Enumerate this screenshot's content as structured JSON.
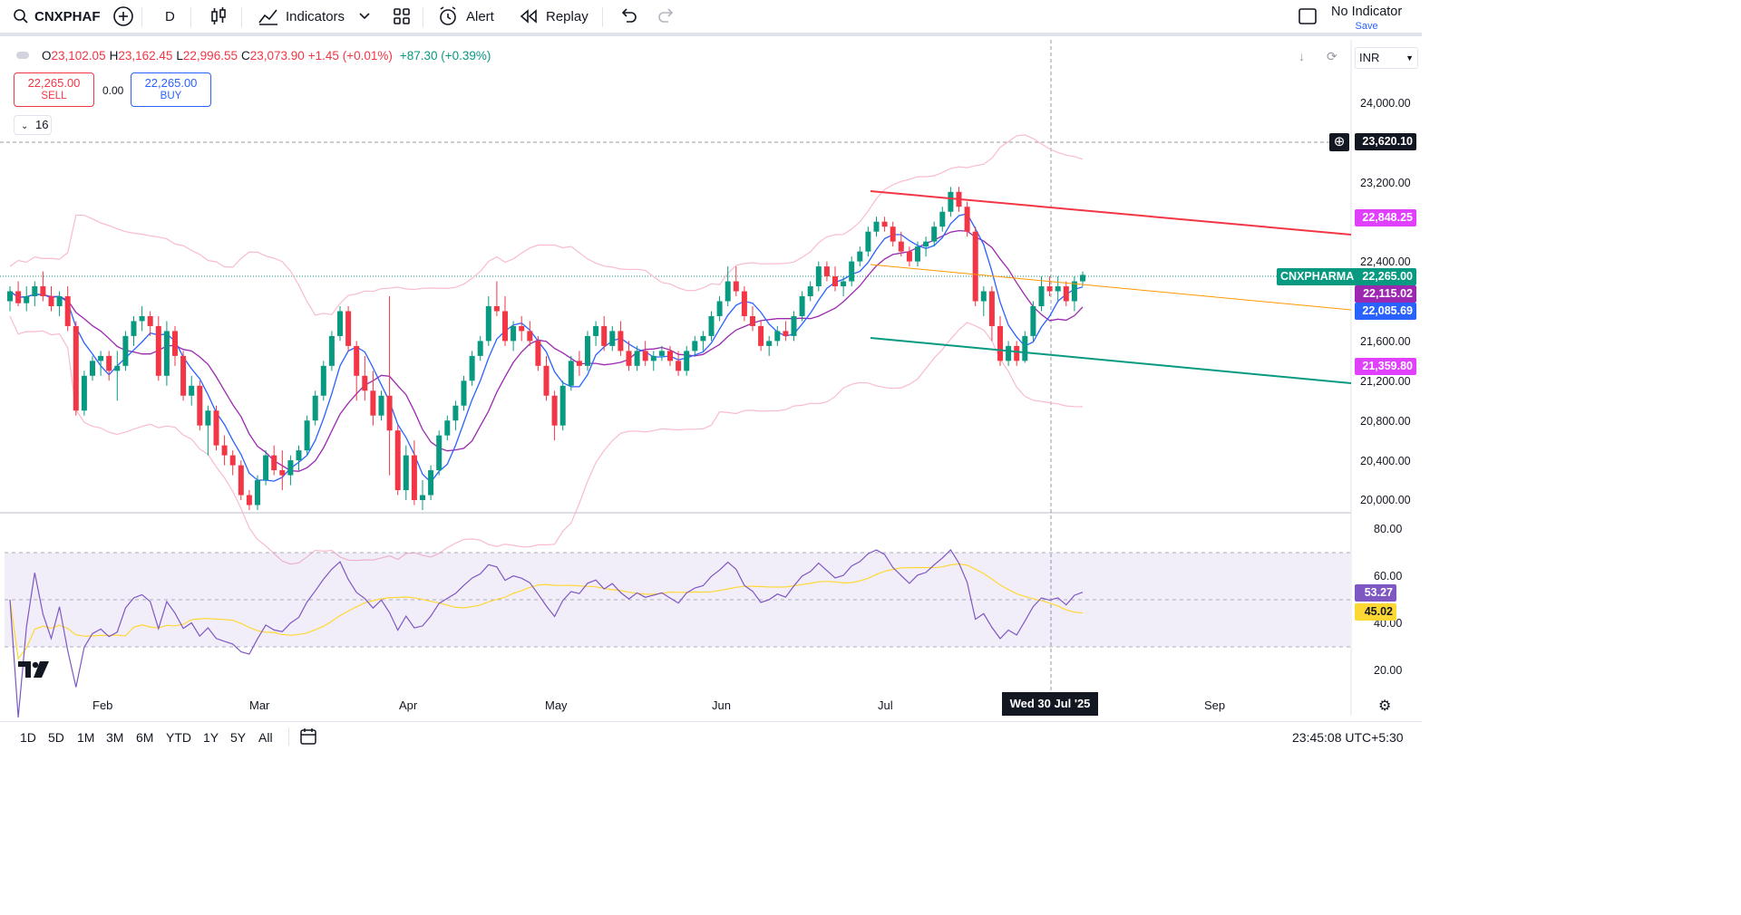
{
  "toolbar": {
    "symbol": "CNXPHAF",
    "interval": "D",
    "indicators_label": "Indicators",
    "alert_label": "Alert",
    "replay_label": "Replay",
    "no_indicator_label": "No Indicator",
    "save_label": "Save"
  },
  "legend": {
    "open_label": "O",
    "open": "23,102.05",
    "high_label": "H",
    "high": "23,162.45",
    "low_label": "L",
    "low": "22,996.55",
    "close_label": "C",
    "close": "23,073.90",
    "change": "+1.45 (+0.01%)",
    "ext_change": "+87.30 (+0.39%)"
  },
  "trade": {
    "sell_price": "22,265.00",
    "sell_label": "SELL",
    "spread": "0.00",
    "buy_price": "22,265.00",
    "buy_label": "BUY"
  },
  "drawings_count": "16",
  "currency": "INR",
  "price_axis": [
    "24,000.00",
    "23,200.00",
    "22,400.00",
    "21,600.00",
    "21,200.00",
    "20,800.00",
    "20,400.00",
    "20,000.00"
  ],
  "price_labels": {
    "crosshair": "23,620.10",
    "red_line": "22,848.25",
    "symbol_tag": "CNXPHARMA",
    "last": "22,265.00",
    "ma_slow": "22,115.02",
    "ma_fast": "22,085.69",
    "green_line": "21,359.80"
  },
  "rsi_axis": [
    "80.00",
    "60.00",
    "40.00",
    "20.00"
  ],
  "rsi_labels": {
    "rsi": "53.27",
    "rsi_ma": "45.02"
  },
  "time_axis": [
    "Feb",
    "Mar",
    "Apr",
    "May",
    "Jun",
    "Jul",
    "Sep"
  ],
  "crosshair_date": "Wed 30 Jul '25",
  "timeframes": [
    "1D",
    "5D",
    "1M",
    "3M",
    "6M",
    "YTD",
    "1Y",
    "5Y",
    "All"
  ],
  "clock": "23:45:08 UTC+5:30",
  "colors": {
    "up": "#089981",
    "down": "#f23645",
    "ma_fast": "#2962ff",
    "ma_slow": "#9c27b0",
    "bb": "#f8bbd0",
    "rsi": "#7e57c2",
    "rsi_ma": "#fdd835"
  },
  "chart_data": {
    "type": "candlestick",
    "ylim": [
      19950,
      24150
    ],
    "candles_ohlc": [
      [
        22000,
        22150,
        21900,
        22100
      ],
      [
        22100,
        22200,
        21950,
        21980
      ],
      [
        21980,
        22150,
        21900,
        22050
      ],
      [
        22050,
        22200,
        21950,
        22150
      ],
      [
        22150,
        22300,
        22000,
        22050
      ],
      [
        22050,
        22150,
        21900,
        21950
      ],
      [
        21950,
        22100,
        21850,
        22050
      ],
      [
        22050,
        22150,
        21700,
        21750
      ],
      [
        21750,
        21800,
        20850,
        20900
      ],
      [
        20900,
        21300,
        20850,
        21250
      ],
      [
        21250,
        21450,
        21200,
        21400
      ],
      [
        21400,
        21500,
        21250,
        21450
      ],
      [
        21450,
        21500,
        21200,
        21300
      ],
      [
        21300,
        21500,
        21000,
        21350
      ],
      [
        21350,
        21700,
        21300,
        21650
      ],
      [
        21650,
        21850,
        21550,
        21800
      ],
      [
        21800,
        21950,
        21700,
        21850
      ],
      [
        21850,
        21900,
        21650,
        21750
      ],
      [
        21750,
        21850,
        21200,
        21250
      ],
      [
        21250,
        21800,
        21150,
        21700
      ],
      [
        21700,
        21750,
        21350,
        21450
      ],
      [
        21450,
        21500,
        21000,
        21050
      ],
      [
        21050,
        21250,
        20950,
        21150
      ],
      [
        21150,
        21200,
        20700,
        20750
      ],
      [
        20750,
        20950,
        20450,
        20900
      ],
      [
        20900,
        20950,
        20500,
        20550
      ],
      [
        20550,
        20650,
        20350,
        20450
      ],
      [
        20450,
        20500,
        20250,
        20350
      ],
      [
        20350,
        20400,
        20000,
        20050
      ],
      [
        20050,
        20100,
        19900,
        19950
      ],
      [
        19950,
        20250,
        19900,
        20200
      ],
      [
        20200,
        20500,
        20150,
        20450
      ],
      [
        20450,
        20550,
        20250,
        20300
      ],
      [
        20300,
        20500,
        20100,
        20250
      ],
      [
        20250,
        20450,
        20150,
        20400
      ],
      [
        20400,
        20550,
        20300,
        20500
      ],
      [
        20500,
        20850,
        20450,
        20800
      ],
      [
        20800,
        21100,
        20750,
        21050
      ],
      [
        21050,
        21400,
        21000,
        21350
      ],
      [
        21350,
        21700,
        21300,
        21650
      ],
      [
        21650,
        21950,
        21600,
        21900
      ],
      [
        21900,
        21950,
        21500,
        21550
      ],
      [
        21550,
        21600,
        21000,
        21250
      ],
      [
        21250,
        21450,
        21000,
        21100
      ],
      [
        21100,
        21300,
        20750,
        20850
      ],
      [
        20850,
        21100,
        20800,
        21050
      ],
      [
        21050,
        22050,
        20250,
        20700
      ],
      [
        20700,
        20750,
        20050,
        20100
      ],
      [
        20100,
        20550,
        20000,
        20450
      ],
      [
        20450,
        20600,
        19950,
        20000
      ],
      [
        20000,
        20200,
        19900,
        20050
      ],
      [
        20050,
        20350,
        20000,
        20300
      ],
      [
        20300,
        20700,
        20250,
        20650
      ],
      [
        20650,
        20850,
        20600,
        20800
      ],
      [
        20800,
        21000,
        20700,
        20950
      ],
      [
        20950,
        21250,
        20900,
        21200
      ],
      [
        21200,
        21500,
        21150,
        21450
      ],
      [
        21450,
        21650,
        21400,
        21600
      ],
      [
        21600,
        22050,
        21550,
        21950
      ],
      [
        21950,
        22200,
        21850,
        21900
      ],
      [
        21900,
        22050,
        21550,
        21600
      ],
      [
        21600,
        21800,
        21500,
        21750
      ],
      [
        21750,
        21850,
        21600,
        21700
      ],
      [
        21700,
        21800,
        21550,
        21600
      ],
      [
        21600,
        21650,
        21300,
        21350
      ],
      [
        21350,
        21450,
        21000,
        21050
      ],
      [
        21050,
        21100,
        20600,
        20750
      ],
      [
        20750,
        21200,
        20700,
        21150
      ],
      [
        21150,
        21450,
        21100,
        21400
      ],
      [
        21400,
        21500,
        21250,
        21350
      ],
      [
        21350,
        21700,
        21300,
        21650
      ],
      [
        21650,
        21800,
        21550,
        21750
      ],
      [
        21750,
        21850,
        21500,
        21550
      ],
      [
        21550,
        21750,
        21500,
        21700
      ],
      [
        21700,
        21800,
        21450,
        21500
      ],
      [
        21500,
        21600,
        21300,
        21350
      ],
      [
        21350,
        21550,
        21300,
        21500
      ],
      [
        21500,
        21600,
        21350,
        21400
      ],
      [
        21400,
        21500,
        21300,
        21450
      ],
      [
        21450,
        21550,
        21400,
        21500
      ],
      [
        21500,
        21550,
        21350,
        21400
      ],
      [
        21400,
        21500,
        21250,
        21300
      ],
      [
        21300,
        21550,
        21250,
        21500
      ],
      [
        21500,
        21650,
        21450,
        21600
      ],
      [
        21600,
        21700,
        21500,
        21650
      ],
      [
        21650,
        21900,
        21600,
        21850
      ],
      [
        21850,
        22050,
        21800,
        22000
      ],
      [
        22000,
        22350,
        21950,
        22200
      ],
      [
        22200,
        22350,
        22050,
        22100
      ],
      [
        22100,
        22150,
        21800,
        21850
      ],
      [
        21850,
        21950,
        21700,
        21750
      ],
      [
        21750,
        21800,
        21500,
        21550
      ],
      [
        21550,
        21650,
        21450,
        21600
      ],
      [
        21600,
        21750,
        21550,
        21700
      ],
      [
        21700,
        21800,
        21600,
        21650
      ],
      [
        21650,
        21900,
        21600,
        21850
      ],
      [
        21850,
        22100,
        21800,
        22050
      ],
      [
        22050,
        22200,
        22000,
        22150
      ],
      [
        22150,
        22400,
        22100,
        22350
      ],
      [
        22350,
        22400,
        22200,
        22250
      ],
      [
        22250,
        22350,
        22100,
        22150
      ],
      [
        22150,
        22250,
        22050,
        22200
      ],
      [
        22200,
        22450,
        22150,
        22400
      ],
      [
        22400,
        22550,
        22350,
        22500
      ],
      [
        22500,
        22750,
        22450,
        22700
      ],
      [
        22700,
        22850,
        22650,
        22800
      ],
      [
        22800,
        22850,
        22700,
        22750
      ],
      [
        22750,
        22800,
        22550,
        22600
      ],
      [
        22600,
        22700,
        22450,
        22500
      ],
      [
        22500,
        22550,
        22350,
        22400
      ],
      [
        22400,
        22600,
        22350,
        22550
      ],
      [
        22550,
        22650,
        22450,
        22600
      ],
      [
        22600,
        22800,
        22550,
        22750
      ],
      [
        22750,
        22950,
        22700,
        22900
      ],
      [
        22900,
        23150,
        22850,
        23100
      ],
      [
        23100,
        23150,
        22900,
        22950
      ],
      [
        22950,
        23000,
        22650,
        22700
      ],
      [
        22700,
        22750,
        21950,
        22000
      ],
      [
        22000,
        22150,
        21850,
        22100
      ],
      [
        22100,
        22150,
        21600,
        21750
      ],
      [
        21750,
        21850,
        21350,
        21400
      ],
      [
        21400,
        21600,
        21350,
        21550
      ],
      [
        21550,
        21600,
        21350,
        21400
      ],
      [
        21400,
        21700,
        21380,
        21650
      ],
      [
        21650,
        22000,
        21600,
        21950
      ],
      [
        21950,
        22250,
        21900,
        22150
      ],
      [
        22150,
        22250,
        22050,
        22100
      ],
      [
        22100,
        22250,
        22000,
        22150
      ],
      [
        22150,
        22200,
        21950,
        22000
      ],
      [
        22000,
        22250,
        21900,
        22200
      ],
      [
        22200,
        22300,
        22150,
        22265
      ]
    ]
  }
}
